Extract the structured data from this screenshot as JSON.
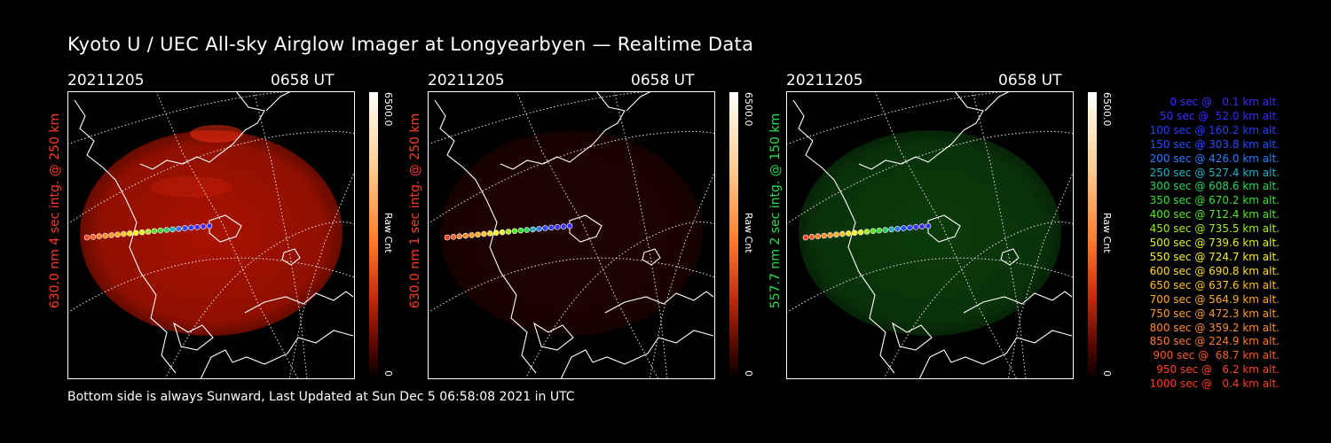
{
  "title": "Kyoto U / UEC All-sky Airglow Imager at Longyearbyen — Realtime Data",
  "footer": "Bottom side is always Sunward, Last Updated at Sun Dec  5 06:58:08 2021 in UTC",
  "panels": [
    {
      "date": "20211205",
      "time": "0658 UT",
      "side_label": "630.0 nm 4 sec intg. @ 250 km",
      "label_color": "#ff3a22",
      "cbar_max": "6500.0",
      "cbar_min": "0",
      "cbar_unit": "Raw Cnt",
      "glow_color": "#c81500",
      "glow_strength": 0.85
    },
    {
      "date": "20211205",
      "time": "0658 UT",
      "side_label": "630.0 nm 1 sec intg. @ 250 km",
      "label_color": "#ff3a22",
      "cbar_max": "6500.0",
      "cbar_min": "0",
      "cbar_unit": "Raw Cnt",
      "glow_color": "#5a0800",
      "glow_strength": 0.35
    },
    {
      "date": "20211205",
      "time": "0658 UT",
      "side_label": "557.7 nm 2 sec intg. @ 150 km",
      "label_color": "#22e04a",
      "cbar_max": "6500.0",
      "cbar_min": "0",
      "cbar_unit": "Raw Cnt",
      "glow_color": "#0d4a0d",
      "glow_strength": 0.8
    }
  ],
  "legend": [
    {
      "text": "   0 sec @   0.1 km alt.",
      "color": "#3a2cff"
    },
    {
      "text": "  50 sec @  52.0 km alt.",
      "color": "#3a2cff"
    },
    {
      "text": " 100 sec @ 160.2 km alt.",
      "color": "#2a3cff"
    },
    {
      "text": " 150 sec @ 303.8 km alt.",
      "color": "#2a4cff"
    },
    {
      "text": " 200 sec @ 426.0 km alt.",
      "color": "#2a7cff"
    },
    {
      "text": " 250 sec @ 527.4 km alt.",
      "color": "#1fb0c8"
    },
    {
      "text": " 300 sec @ 608.6 km alt.",
      "color": "#22d860"
    },
    {
      "text": " 350 sec @ 670.2 km alt.",
      "color": "#33e033"
    },
    {
      "text": " 400 sec @ 712.4 km alt.",
      "color": "#55e822"
    },
    {
      "text": " 450 sec @ 735.5 km alt.",
      "color": "#a8ee22"
    },
    {
      "text": " 500 sec @ 739.6 km alt.",
      "color": "#e2f222"
    },
    {
      "text": " 550 sec @ 724.7 km alt.",
      "color": "#f6f222"
    },
    {
      "text": " 600 sec @ 690.8 km alt.",
      "color": "#ffdd22"
    },
    {
      "text": " 650 sec @ 637.6 km alt.",
      "color": "#ffc022"
    },
    {
      "text": " 700 sec @ 564.9 km alt.",
      "color": "#ffaa22"
    },
    {
      "text": " 750 sec @ 472.3 km alt.",
      "color": "#ff9a28"
    },
    {
      "text": " 800 sec @ 359.2 km alt.",
      "color": "#ff8a2a"
    },
    {
      "text": " 850 sec @ 224.9 km alt.",
      "color": "#ff7a2a"
    },
    {
      "text": " 900 sec @  68.7 km alt.",
      "color": "#ff5a28"
    },
    {
      "text": " 950 sec @   6.2 km alt.",
      "color": "#ff4426"
    },
    {
      "text": "1000 sec @   0.4 km alt.",
      "color": "#ff3a22"
    }
  ]
}
